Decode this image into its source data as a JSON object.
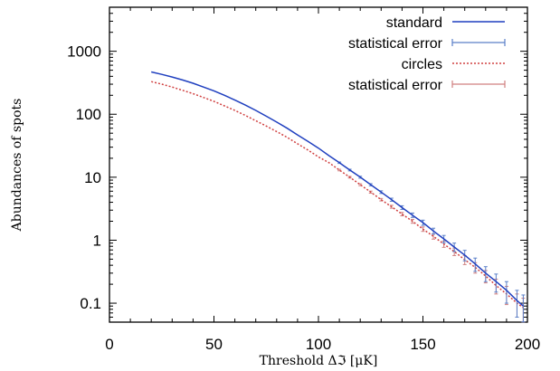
{
  "chart_data": {
    "type": "line",
    "xlabel": "Threshold Δℑ [μK]",
    "ylabel": "Abundances of spots",
    "xlim": [
      0,
      200
    ],
    "ylim": [
      0.05,
      5000
    ],
    "yscale": "log",
    "x_ticks": [
      0,
      50,
      100,
      150,
      200
    ],
    "x_tick_labels": [
      "0",
      "50",
      "100",
      "150",
      "200"
    ],
    "y_ticks": [
      0.1,
      1,
      10,
      100,
      1000
    ],
    "y_tick_labels": [
      "0.1",
      "1",
      "10",
      "100",
      "1000"
    ],
    "grid": false,
    "legend_position": "top-right",
    "legend": [
      "standard",
      "statistical error",
      "circles",
      "statistical error"
    ],
    "series": [
      {
        "name": "standard",
        "style": "solid",
        "color": "#1f3fbf",
        "error_color": "#5a7fc8",
        "x": [
          20,
          25,
          30,
          35,
          40,
          45,
          50,
          55,
          60,
          65,
          70,
          75,
          80,
          85,
          90,
          95,
          100,
          105,
          110,
          115,
          120,
          125,
          130,
          135,
          140,
          145,
          150,
          155,
          160,
          165,
          170,
          175,
          180,
          185,
          190,
          195,
          198
        ],
        "y": [
          470,
          430,
          390,
          350,
          310,
          270,
          235,
          200,
          168,
          140,
          115,
          93,
          75,
          60,
          47,
          37,
          29,
          22,
          17,
          13,
          10,
          7.6,
          5.8,
          4.4,
          3.3,
          2.5,
          1.9,
          1.4,
          1.05,
          0.78,
          0.58,
          0.42,
          0.3,
          0.22,
          0.16,
          0.11,
          0.09
        ],
        "err": [
          4,
          4,
          4,
          3.5,
          3,
          3,
          2.5,
          2.2,
          2,
          1.8,
          1.5,
          1.3,
          1.1,
          0.9,
          0.8,
          0.7,
          0.6,
          0.5,
          0.45,
          0.4,
          0.35,
          0.3,
          0.28,
          0.25,
          0.22,
          0.2,
          0.18,
          0.15,
          0.14,
          0.12,
          0.11,
          0.1,
          0.08,
          0.07,
          0.06,
          0.05,
          0.045
        ]
      },
      {
        "name": "circles",
        "style": "dotted",
        "color": "#d04040",
        "error_color": "#d08080",
        "x": [
          20,
          25,
          30,
          35,
          40,
          45,
          50,
          55,
          60,
          65,
          70,
          75,
          80,
          85,
          90,
          95,
          100,
          105,
          110,
          115,
          120,
          125,
          130,
          135,
          140,
          145,
          150,
          155,
          160,
          165,
          170,
          175,
          180,
          185,
          190,
          195,
          198
        ],
        "y": [
          330,
          300,
          270,
          240,
          212,
          185,
          160,
          136,
          115,
          96,
          79,
          65,
          53,
          43,
          34,
          27,
          21,
          17,
          13,
          10,
          7.6,
          5.8,
          4.4,
          3.4,
          2.6,
          2.0,
          1.5,
          1.15,
          0.87,
          0.66,
          0.49,
          0.37,
          0.27,
          0.19,
          0.14,
          0.1,
          0.085
        ],
        "err": [
          3,
          3,
          3,
          2.8,
          2.5,
          2.2,
          2,
          1.8,
          1.6,
          1.4,
          1.2,
          1,
          0.9,
          0.8,
          0.7,
          0.6,
          0.5,
          0.42,
          0.36,
          0.3,
          0.26,
          0.22,
          0.2,
          0.18,
          0.16,
          0.14,
          0.12,
          0.11,
          0.1,
          0.09,
          0.08,
          0.07,
          0.06,
          0.05,
          0.045,
          0.04,
          0.035
        ]
      }
    ]
  }
}
